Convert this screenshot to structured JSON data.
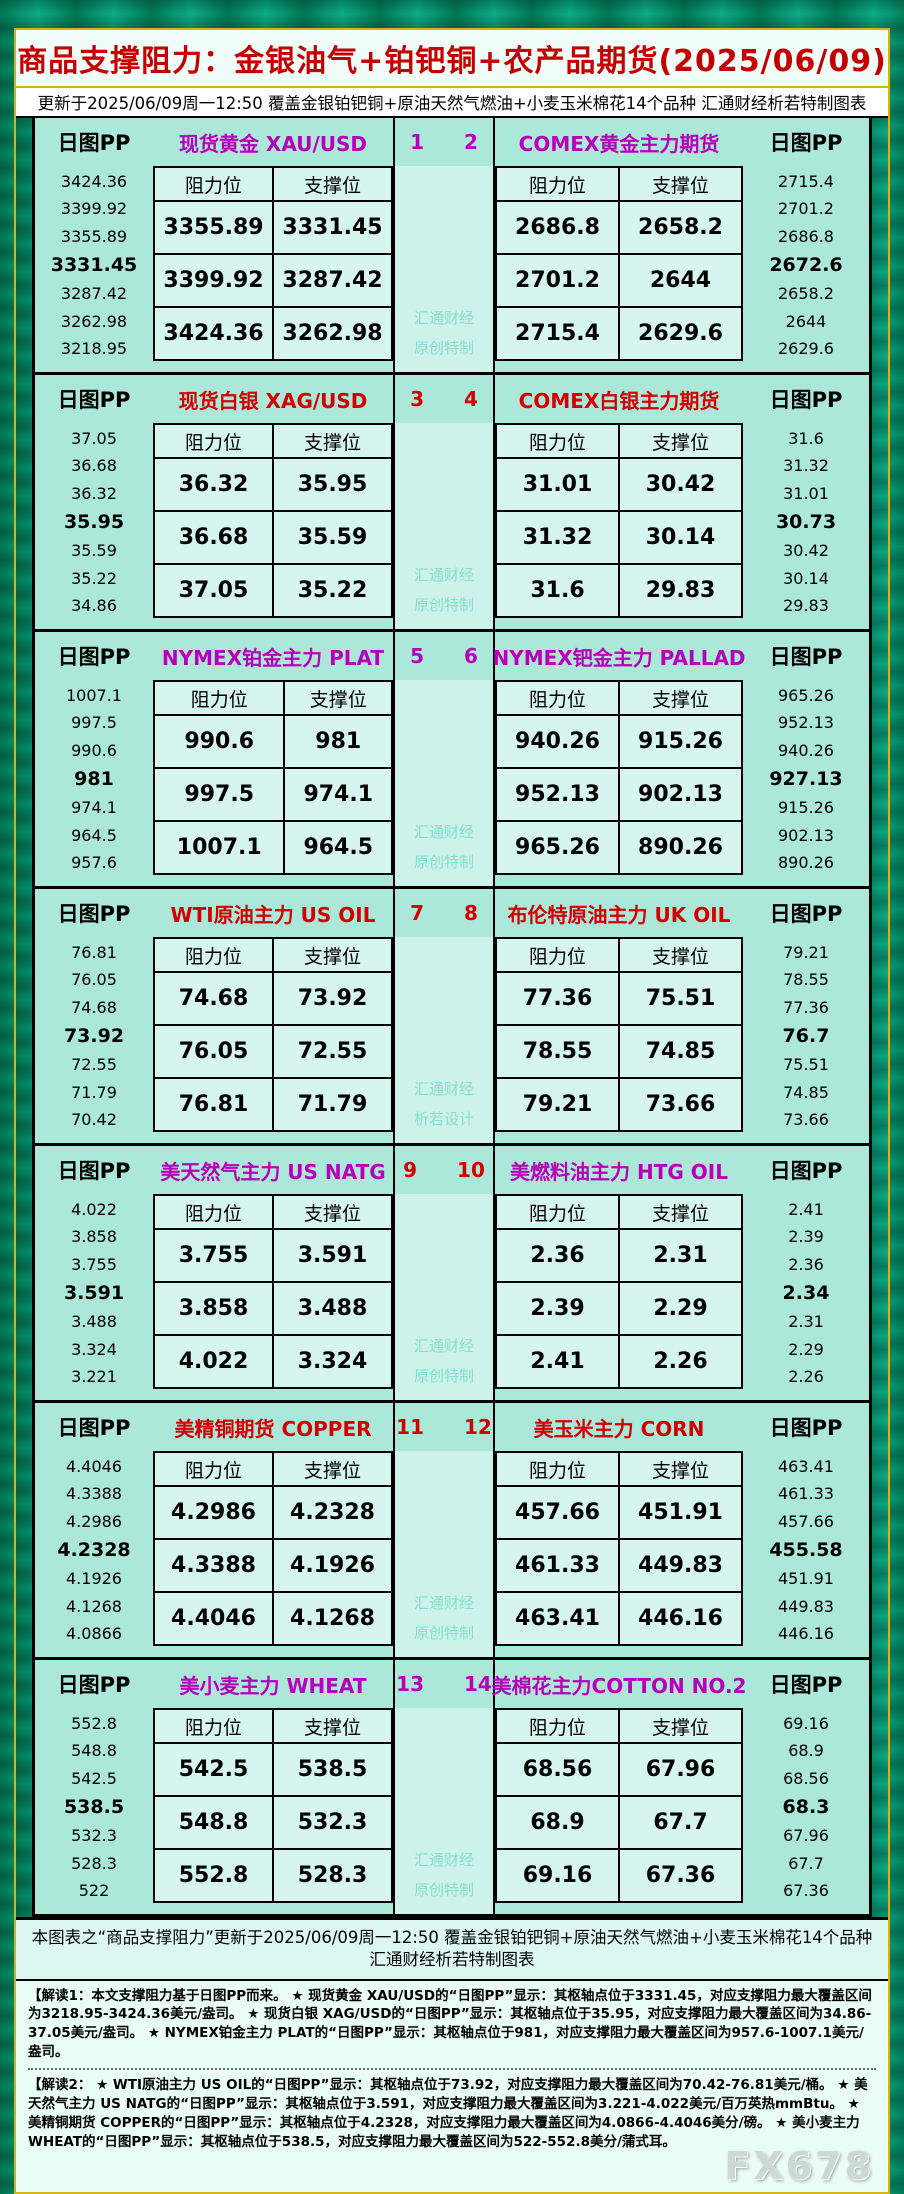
{
  "title": "商品支撑阻力：金银油气+铂钯铜+农产品期货(2025/06/09)",
  "subtitle": "更新于2025/06/09周一12:50  覆盖金银铂钯铜+原油天然气燃油+小麦玉米棉花14个品种  汇通财经析若特制图表",
  "labels": {
    "pp": "日图PP",
    "resistance": "阻力位",
    "support": "支撑位"
  },
  "colors": {
    "magenta": "#b800b8",
    "red": "#d40000",
    "panel": "#abe8da",
    "cell": "#d6f5ee",
    "title_red": "#c40000",
    "gold_border": "#d3b413"
  },
  "rows": [
    {
      "num_left": "1",
      "num_right": "2",
      "accent": "#b800b8",
      "num_color": "#b800b8",
      "watermark": [
        "汇通财经",
        "原创特制"
      ],
      "left": {
        "title": "现货黄金 XAU/USD",
        "pp": [
          "3424.36",
          "3399.92",
          "3355.89",
          "3331.45",
          "3287.42",
          "3262.98",
          "3218.95"
        ],
        "table": [
          [
            "3355.89",
            "3331.45"
          ],
          [
            "3399.92",
            "3287.42"
          ],
          [
            "3424.36",
            "3262.98"
          ]
        ]
      },
      "right": {
        "title": "COMEX黄金主力期货",
        "pp": [
          "2715.4",
          "2701.2",
          "2686.8",
          "2672.6",
          "2658.2",
          "2644",
          "2629.6"
        ],
        "table": [
          [
            "2686.8",
            "2658.2"
          ],
          [
            "2701.2",
            "2644"
          ],
          [
            "2715.4",
            "2629.6"
          ]
        ]
      }
    },
    {
      "num_left": "3",
      "num_right": "4",
      "accent": "#d40000",
      "num_color": "#d40000",
      "watermark": [
        "汇通财经",
        "原创特制"
      ],
      "left": {
        "title": "现货白银 XAG/USD",
        "pp": [
          "37.05",
          "36.68",
          "36.32",
          "35.95",
          "35.59",
          "35.22",
          "34.86"
        ],
        "table": [
          [
            "36.32",
            "35.95"
          ],
          [
            "36.68",
            "35.59"
          ],
          [
            "37.05",
            "35.22"
          ]
        ]
      },
      "right": {
        "title": "COMEX白银主力期货",
        "pp": [
          "31.6",
          "31.32",
          "31.01",
          "30.73",
          "30.42",
          "30.14",
          "29.83"
        ],
        "table": [
          [
            "31.01",
            "30.42"
          ],
          [
            "31.32",
            "30.14"
          ],
          [
            "31.6",
            "29.83"
          ]
        ]
      }
    },
    {
      "num_left": "5",
      "num_right": "6",
      "accent": "#b800b8",
      "num_color": "#b800b8",
      "watermark": [
        "汇通财经",
        "原创特制"
      ],
      "left": {
        "title": "NYMEX铂金主力 PLAT",
        "pp": [
          "1007.1",
          "997.5",
          "990.6",
          "981",
          "974.1",
          "964.5",
          "957.6"
        ],
        "table": [
          [
            "990.6",
            "981"
          ],
          [
            "997.5",
            "974.1"
          ],
          [
            "1007.1",
            "964.5"
          ]
        ]
      },
      "right": {
        "title": "NYMEX钯金主力 PALLAD",
        "pp": [
          "965.26",
          "952.13",
          "940.26",
          "927.13",
          "915.26",
          "902.13",
          "890.26"
        ],
        "table": [
          [
            "940.26",
            "915.26"
          ],
          [
            "952.13",
            "902.13"
          ],
          [
            "965.26",
            "890.26"
          ]
        ]
      }
    },
    {
      "num_left": "7",
      "num_right": "8",
      "accent": "#d40000",
      "num_color": "#d40000",
      "watermark": [
        "汇通财经",
        "析若设计"
      ],
      "left": {
        "title": "WTI原油主力 US OIL",
        "pp": [
          "76.81",
          "76.05",
          "74.68",
          "73.92",
          "72.55",
          "71.79",
          "70.42"
        ],
        "table": [
          [
            "74.68",
            "73.92"
          ],
          [
            "76.05",
            "72.55"
          ],
          [
            "76.81",
            "71.79"
          ]
        ]
      },
      "right": {
        "title": "布伦特原油主力 UK OIL",
        "pp": [
          "79.21",
          "78.55",
          "77.36",
          "76.7",
          "75.51",
          "74.85",
          "73.66"
        ],
        "table": [
          [
            "77.36",
            "75.51"
          ],
          [
            "78.55",
            "74.85"
          ],
          [
            "79.21",
            "73.66"
          ]
        ]
      }
    },
    {
      "num_left": "9",
      "num_right": "10",
      "accent": "#b800b8",
      "num_color": "#d40000",
      "watermark": [
        "汇通财经",
        "原创特制"
      ],
      "left": {
        "title": "美天然气主力 US NATG",
        "pp": [
          "4.022",
          "3.858",
          "3.755",
          "3.591",
          "3.488",
          "3.324",
          "3.221"
        ],
        "table": [
          [
            "3.755",
            "3.591"
          ],
          [
            "3.858",
            "3.488"
          ],
          [
            "4.022",
            "3.324"
          ]
        ]
      },
      "right": {
        "title": "美燃料油主力 HTG OIL",
        "pp": [
          "2.41",
          "2.39",
          "2.36",
          "2.34",
          "2.31",
          "2.29",
          "2.26"
        ],
        "table": [
          [
            "2.36",
            "2.31"
          ],
          [
            "2.39",
            "2.29"
          ],
          [
            "2.41",
            "2.26"
          ]
        ]
      }
    },
    {
      "num_left": "11",
      "num_right": "12",
      "accent": "#d40000",
      "num_color": "#d40000",
      "watermark": [
        "汇通财经",
        "原创特制"
      ],
      "left": {
        "title": "美精铜期货 COPPER",
        "pp": [
          "4.4046",
          "4.3388",
          "4.2986",
          "4.2328",
          "4.1926",
          "4.1268",
          "4.0866"
        ],
        "table": [
          [
            "4.2986",
            "4.2328"
          ],
          [
            "4.3388",
            "4.1926"
          ],
          [
            "4.4046",
            "4.1268"
          ]
        ]
      },
      "right": {
        "title": "美玉米主力 CORN",
        "pp": [
          "463.41",
          "461.33",
          "457.66",
          "455.58",
          "451.91",
          "449.83",
          "446.16"
        ],
        "table": [
          [
            "457.66",
            "451.91"
          ],
          [
            "461.33",
            "449.83"
          ],
          [
            "463.41",
            "446.16"
          ]
        ]
      }
    },
    {
      "num_left": "13",
      "num_right": "14",
      "accent": "#b800b8",
      "num_color": "#b800b8",
      "watermark": [
        "汇通财经",
        "原创特制"
      ],
      "left": {
        "title": "美小麦主力 WHEAT",
        "pp": [
          "552.8",
          "548.8",
          "542.5",
          "538.5",
          "532.3",
          "528.3",
          "522"
        ],
        "table": [
          [
            "542.5",
            "538.5"
          ],
          [
            "548.8",
            "532.3"
          ],
          [
            "552.8",
            "528.3"
          ]
        ]
      },
      "right": {
        "title": "美棉花主力COTTON NO.2",
        "pp": [
          "69.16",
          "68.9",
          "68.56",
          "68.3",
          "67.96",
          "67.7",
          "67.36"
        ],
        "table": [
          [
            "68.56",
            "67.96"
          ],
          [
            "68.9",
            "67.7"
          ],
          [
            "69.16",
            "67.36"
          ]
        ]
      }
    }
  ],
  "footer_note": "本图表之“商品支撑阻力”更新于2025/06/09周一12:50  覆盖金银铂钯铜+原油天然气燃油+小麦玉米棉花14个品种  汇通财经析若特制图表",
  "interpretation1": "【解读1：本文支撑阻力基于日图PP而来。 ★ 现货黄金 XAU/USD的“日图PP”显示：其枢轴点位于3331.45，对应支撑阻力最大覆盖区间为3218.95-3424.36美元/盎司。 ★ 现货白银 XAG/USD的“日图PP”显示：其枢轴点位于35.95，对应支撑阻力最大覆盖区间为34.86-37.05美元/盎司。 ★ NYMEX铂金主力 PLAT的“日图PP”显示：其枢轴点位于981，对应支撑阻力最大覆盖区间为957.6-1007.1美元/盎司。",
  "interpretation2": "【解读2： ★ WTI原油主力 US OIL的“日图PP”显示：其枢轴点位于73.92，对应支撑阻力最大覆盖区间为70.42-76.81美元/桶。 ★ 美天然气主力 US NATG的“日图PP”显示：其枢轴点位于3.591，对应支撑阻力最大覆盖区间为3.221-4.022美元/百万英热mmBtu。 ★ 美精铜期货 COPPER的“日图PP”显示：其枢轴点位于4.2328，对应支撑阻力最大覆盖区间为4.0866-4.4046美分/磅。 ★ 美小麦主力 WHEAT的“日图PP”显示：其枢轴点位于538.5，对应支撑阻力最大覆盖区间为522-552.8美分/蒲式耳。",
  "brand_watermark": "FX678"
}
